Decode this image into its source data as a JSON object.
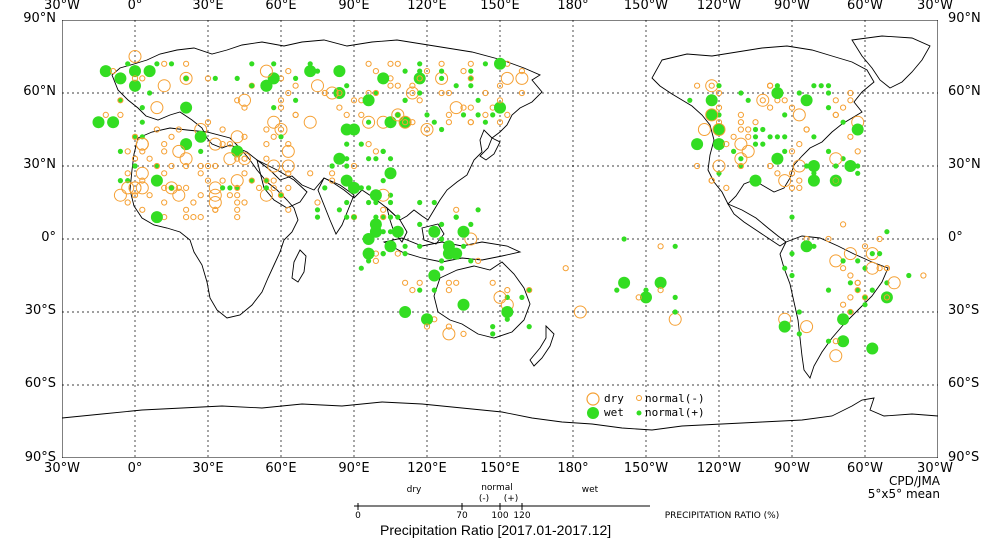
{
  "title": "Precipitation Ratio [2017.01-2017.12]",
  "credit": [
    "CPD/JMA",
    "5°x5° mean"
  ],
  "lon_labels": [
    "30°W",
    "0°",
    "30°E",
    "60°E",
    "90°E",
    "120°E",
    "150°E",
    "180°",
    "150°W",
    "120°W",
    "90°W",
    "60°W",
    "30°W"
  ],
  "lat_labels": [
    "90°N",
    "60°N",
    "30°N",
    "0°",
    "30°S",
    "60°S",
    "90°S"
  ],
  "legend": {
    "dry": "dry",
    "wet": "wet",
    "normal_minus": "normal(-)",
    "normal_plus": "normal(+)"
  },
  "scale": {
    "dry": "dry",
    "normal": "normal",
    "minus": "(-)",
    "plus": "(+)",
    "wet": "wet",
    "ticks": [
      "0",
      "70",
      "100",
      "120"
    ],
    "unit": "PRECIPITATION RATIO  (%)"
  },
  "colors": {
    "dry": "#f5a033",
    "wet": "#33dd22",
    "grid": "#000000"
  }
}
